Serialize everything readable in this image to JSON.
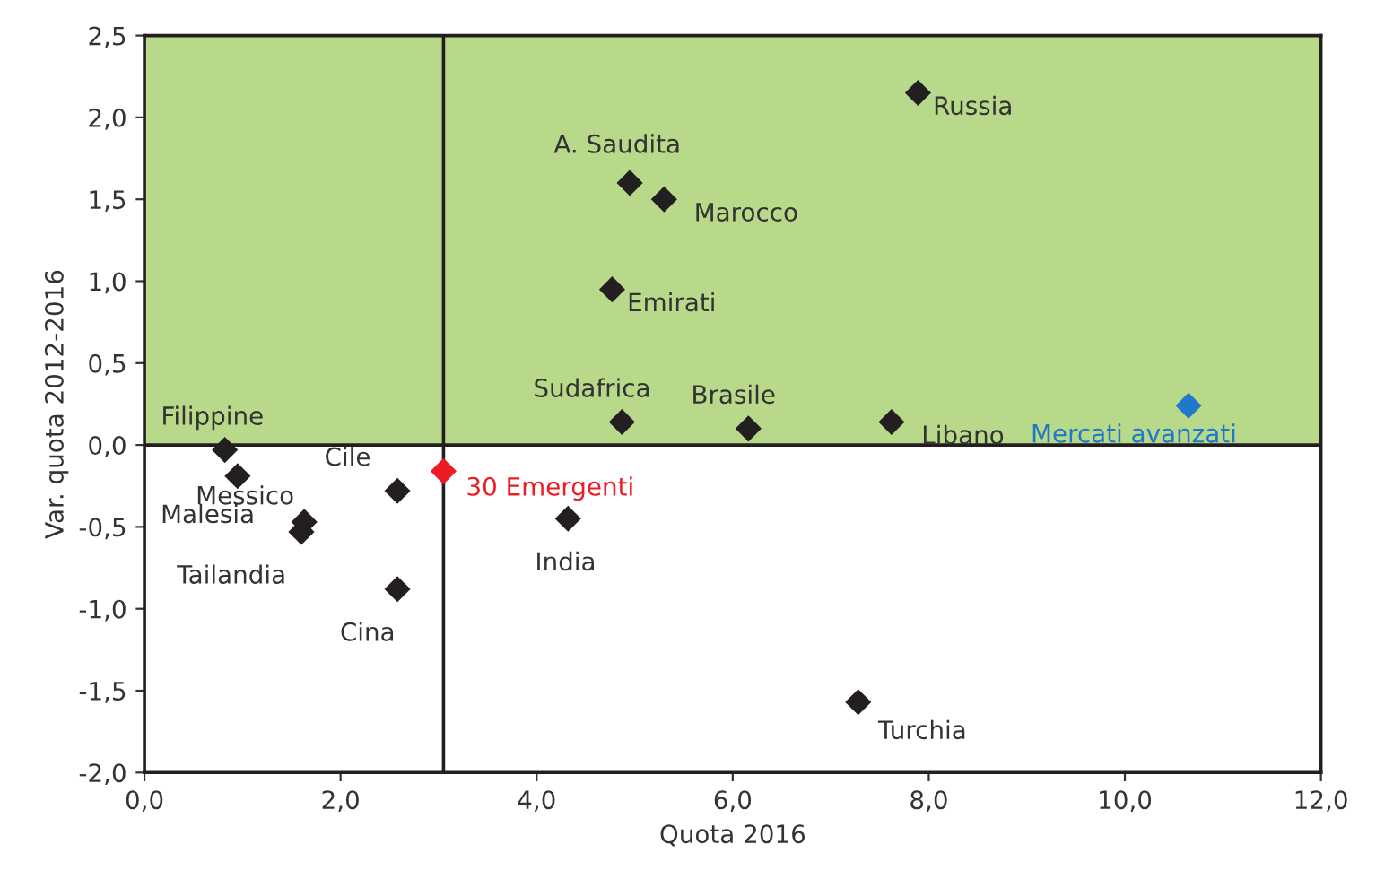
{
  "chart_data": {
    "type": "scatter",
    "xlabel": "Quota 2016",
    "ylabel": "Var. quota 2012-2016",
    "marker": "diamond",
    "grid": false,
    "series": [
      {
        "x": [
          7.89,
          4.95,
          5.3,
          4.77,
          4.87,
          6.16,
          7.62,
          10.65,
          0.82,
          0.95,
          1.63,
          1.6,
          2.58,
          2.58,
          3.05,
          4.32,
          7.28
        ],
        "values": [
          2.15,
          1.6,
          1.5,
          0.95,
          0.14,
          0.1,
          0.14,
          0.24,
          -0.03,
          -0.19,
          -0.47,
          -0.53,
          -0.28,
          -0.88,
          -0.16,
          -0.45,
          -1.57
        ],
        "colors": [
          "#231f20",
          "#231f20",
          "#231f20",
          "#231f20",
          "#231f20",
          "#231f20",
          "#231f20",
          "#1f78c8",
          "#231f20",
          "#231f20",
          "#231f20",
          "#231f20",
          "#231f20",
          "#231f20",
          "#ed1c24",
          "#231f20",
          "#231f20"
        ]
      }
    ],
    "annotations": [
      {
        "text": "Russia",
        "x": 7.89,
        "y": 2.15
      },
      {
        "text": "A. Saudita",
        "x": 4.95,
        "y": 1.6
      },
      {
        "text": "Marocco",
        "x": 5.3,
        "y": 1.5
      },
      {
        "text": "Emirati",
        "x": 4.77,
        "y": 0.95
      },
      {
        "text": "Sudafrica",
        "x": 4.87,
        "y": 0.14
      },
      {
        "text": "Brasile",
        "x": 6.16,
        "y": 0.1
      },
      {
        "text": "Libano",
        "x": 7.62,
        "y": 0.14
      },
      {
        "text": "Mercati avanzati",
        "x": 10.65,
        "y": 0.24
      },
      {
        "text": "Filippine",
        "x": 0.82,
        "y": -0.03
      },
      {
        "text": "Malesia",
        "x": 0.95,
        "y": -0.19
      },
      {
        "text": "Messico",
        "x": 1.63,
        "y": -0.47
      },
      {
        "text": "Tailandia",
        "x": 1.6,
        "y": -0.53
      },
      {
        "text": "Cile",
        "x": 2.58,
        "y": -0.28
      },
      {
        "text": "Cina",
        "x": 2.58,
        "y": -0.88
      },
      {
        "text": "30 Emergenti",
        "x": 3.05,
        "y": -0.16
      },
      {
        "text": "India",
        "x": 4.32,
        "y": -0.45
      },
      {
        "text": "Turchia",
        "x": 7.28,
        "y": -1.57
      }
    ],
    "ref_lines": [
      {
        "axis": "x",
        "value": 3.05,
        "label": null,
        "color": "#231f20"
      },
      {
        "axis": "y",
        "value": 0,
        "label": null,
        "color": "#231f20"
      }
    ],
    "bands": [
      {
        "axis": "y",
        "from": 0,
        "to": 2.5,
        "label": null,
        "color": "#b8d98a"
      }
    ],
    "xlim": [
      0,
      12
    ],
    "ylim": [
      -2,
      2.5
    ],
    "xticks": [
      {
        "value": 0,
        "label": "0,0"
      },
      {
        "value": 2,
        "label": "2,0"
      },
      {
        "value": 4,
        "label": "4,0"
      },
      {
        "value": 6,
        "label": "6,0"
      },
      {
        "value": 8,
        "label": "8,0"
      },
      {
        "value": 10,
        "label": "10,0"
      },
      {
        "value": 12,
        "label": "12,0"
      }
    ],
    "yticks": [
      {
        "value": -2,
        "label": "-2,0"
      },
      {
        "value": -1.5,
        "label": "-1,5"
      },
      {
        "value": -1,
        "label": "-1,0"
      },
      {
        "value": -0.5,
        "label": "-0,5"
      },
      {
        "value": 0,
        "label": "0,0"
      },
      {
        "value": 0.5,
        "label": "0,5"
      },
      {
        "value": 1,
        "label": "1,0"
      },
      {
        "value": 1.5,
        "label": "1,5"
      },
      {
        "value": 2,
        "label": "2,0"
      },
      {
        "value": 2.5,
        "label": "2,5"
      }
    ]
  }
}
